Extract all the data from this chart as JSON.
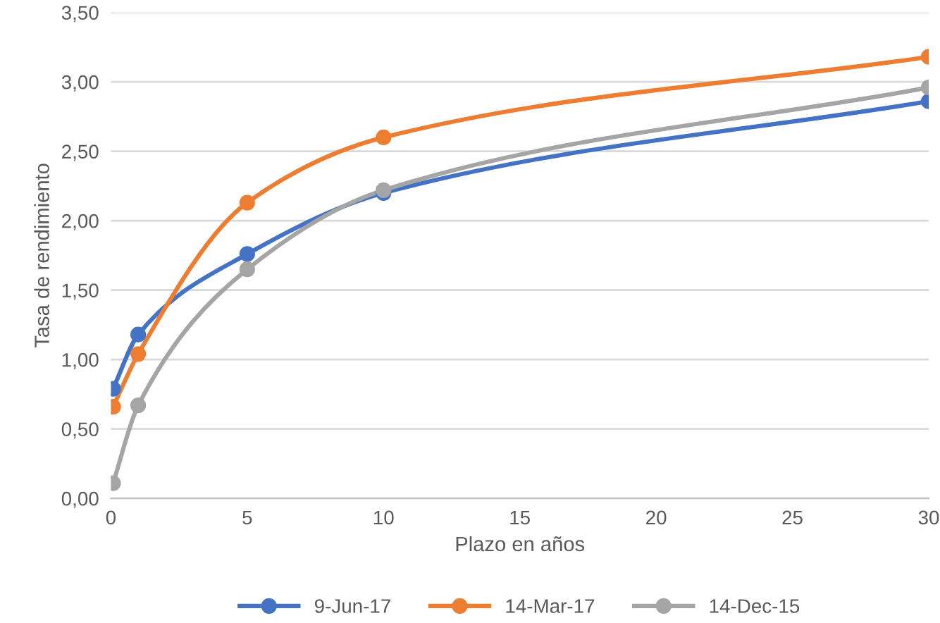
{
  "chart_data": {
    "type": "line",
    "xlabel": "Plazo en años",
    "ylabel": "Tasa de rendimiento",
    "x": [
      0.08,
      1,
      5,
      10,
      30
    ],
    "series": [
      {
        "name": "9-Jun-17",
        "color": "#4472c4",
        "values": [
          0.79,
          1.18,
          1.76,
          2.2,
          2.86
        ]
      },
      {
        "name": "14-Mar-17",
        "color": "#ed7d31",
        "values": [
          0.66,
          1.04,
          2.13,
          2.6,
          3.18
        ]
      },
      {
        "name": "14-Dec-15",
        "color": "#a5a5a5",
        "values": [
          0.11,
          0.67,
          1.65,
          2.22,
          2.96
        ]
      }
    ],
    "xlim": [
      0,
      30
    ],
    "xticks": [
      0,
      5,
      10,
      15,
      20,
      25,
      30
    ],
    "ylim": [
      0,
      3.5
    ],
    "yticks": [
      {
        "value": 0,
        "label": "0,00"
      },
      {
        "value": 0.5,
        "label": "0,50"
      },
      {
        "value": 1,
        "label": "1,00"
      },
      {
        "value": 1.5,
        "label": "1,50"
      },
      {
        "value": 2,
        "label": "2,00"
      },
      {
        "value": 2.5,
        "label": "2,50"
      },
      {
        "value": 3,
        "label": "3,00"
      },
      {
        "value": 3.5,
        "label": "3,50"
      }
    ],
    "grid": "y",
    "legend": "bottom",
    "marker": "circle",
    "line_style": "solid"
  }
}
